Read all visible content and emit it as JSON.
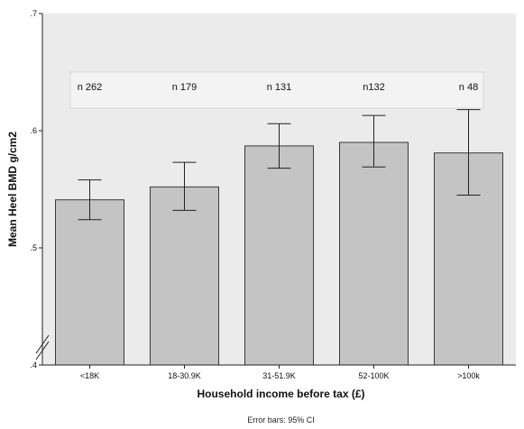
{
  "chart_data": {
    "type": "bar",
    "categories": [
      "<18K",
      "18-30.9K",
      "31-51.9K",
      "52-100K",
      ">100k"
    ],
    "values": [
      0.541,
      0.552,
      0.587,
      0.59,
      0.581
    ],
    "ci_lower": [
      0.524,
      0.532,
      0.568,
      0.569,
      0.545
    ],
    "ci_upper": [
      0.558,
      0.573,
      0.606,
      0.613,
      0.618
    ],
    "n_labels": [
      "n 262",
      "n 179",
      "n 131",
      "n132",
      "n 48"
    ],
    "xlabel": "Household income before tax (£)",
    "ylabel": "Mean Heel BMD g/cm2",
    "ylim": [
      0.4,
      0.7
    ],
    "yticks": [
      0.4,
      0.5,
      0.6,
      0.7
    ],
    "ytick_labels": [
      ".4",
      ".5",
      ".6",
      ".7"
    ],
    "axis_break": true,
    "grid": false,
    "footnote": "Error bars: 95% CI",
    "colors": {
      "plot_bg": "#ebebeb",
      "bar_fill": "#c4c4c4",
      "bar_stroke": "#3a3a3a",
      "annotation_box": "#ffffff"
    }
  }
}
